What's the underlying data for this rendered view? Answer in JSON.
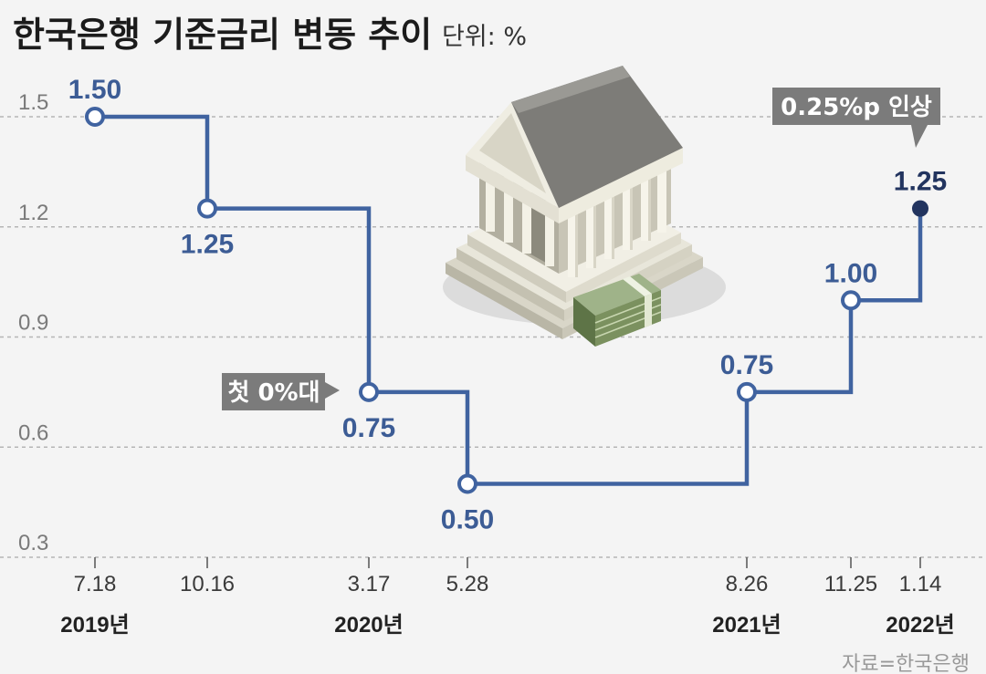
{
  "title": "한국은행 기준금리 변동 추이",
  "unit": "단위: %",
  "source": "자료=한국은행",
  "colors": {
    "line": "#4063a0",
    "marker_fill": "#ffffff",
    "final_marker": "#22345f",
    "callout_bg": "#7b7b7b",
    "grid": "#b5b5b5"
  },
  "callouts": {
    "first_zero": "첫 0%대",
    "hike": "0.25%p 인상"
  },
  "illustration": "bank-building-with-money-icon",
  "chart_data": {
    "type": "line",
    "step": true,
    "title": "한국은행 기준금리 변동 추이",
    "ylabel": "단위: %",
    "ylim": [
      0.3,
      1.5
    ],
    "yticks": [
      "1.5",
      "1.2",
      "0.9",
      "0.6",
      "0.3"
    ],
    "grid": "horizontal-dashed",
    "dates": [
      "2019-07-18",
      "2019-10-16",
      "2020-03-17",
      "2020-05-28",
      "2021-08-26",
      "2021-11-25",
      "2022-01-14"
    ],
    "x_labels": [
      "7.18",
      "10.16",
      "3.17",
      "5.28",
      "8.26",
      "11.25",
      "1.14"
    ],
    "values": [
      1.5,
      1.25,
      0.75,
      0.5,
      0.75,
      1.0,
      1.25
    ],
    "value_labels": [
      "1.50",
      "1.25",
      "0.75",
      "0.50",
      "0.75",
      "1.00",
      "1.25"
    ],
    "years": [
      {
        "label": "2019년",
        "date": "2019-07-18"
      },
      {
        "label": "2020년",
        "date": "2020-03-17"
      },
      {
        "label": "2021년",
        "date": "2021-08-26"
      },
      {
        "label": "2022년",
        "date": "2022-01-14"
      }
    ]
  }
}
